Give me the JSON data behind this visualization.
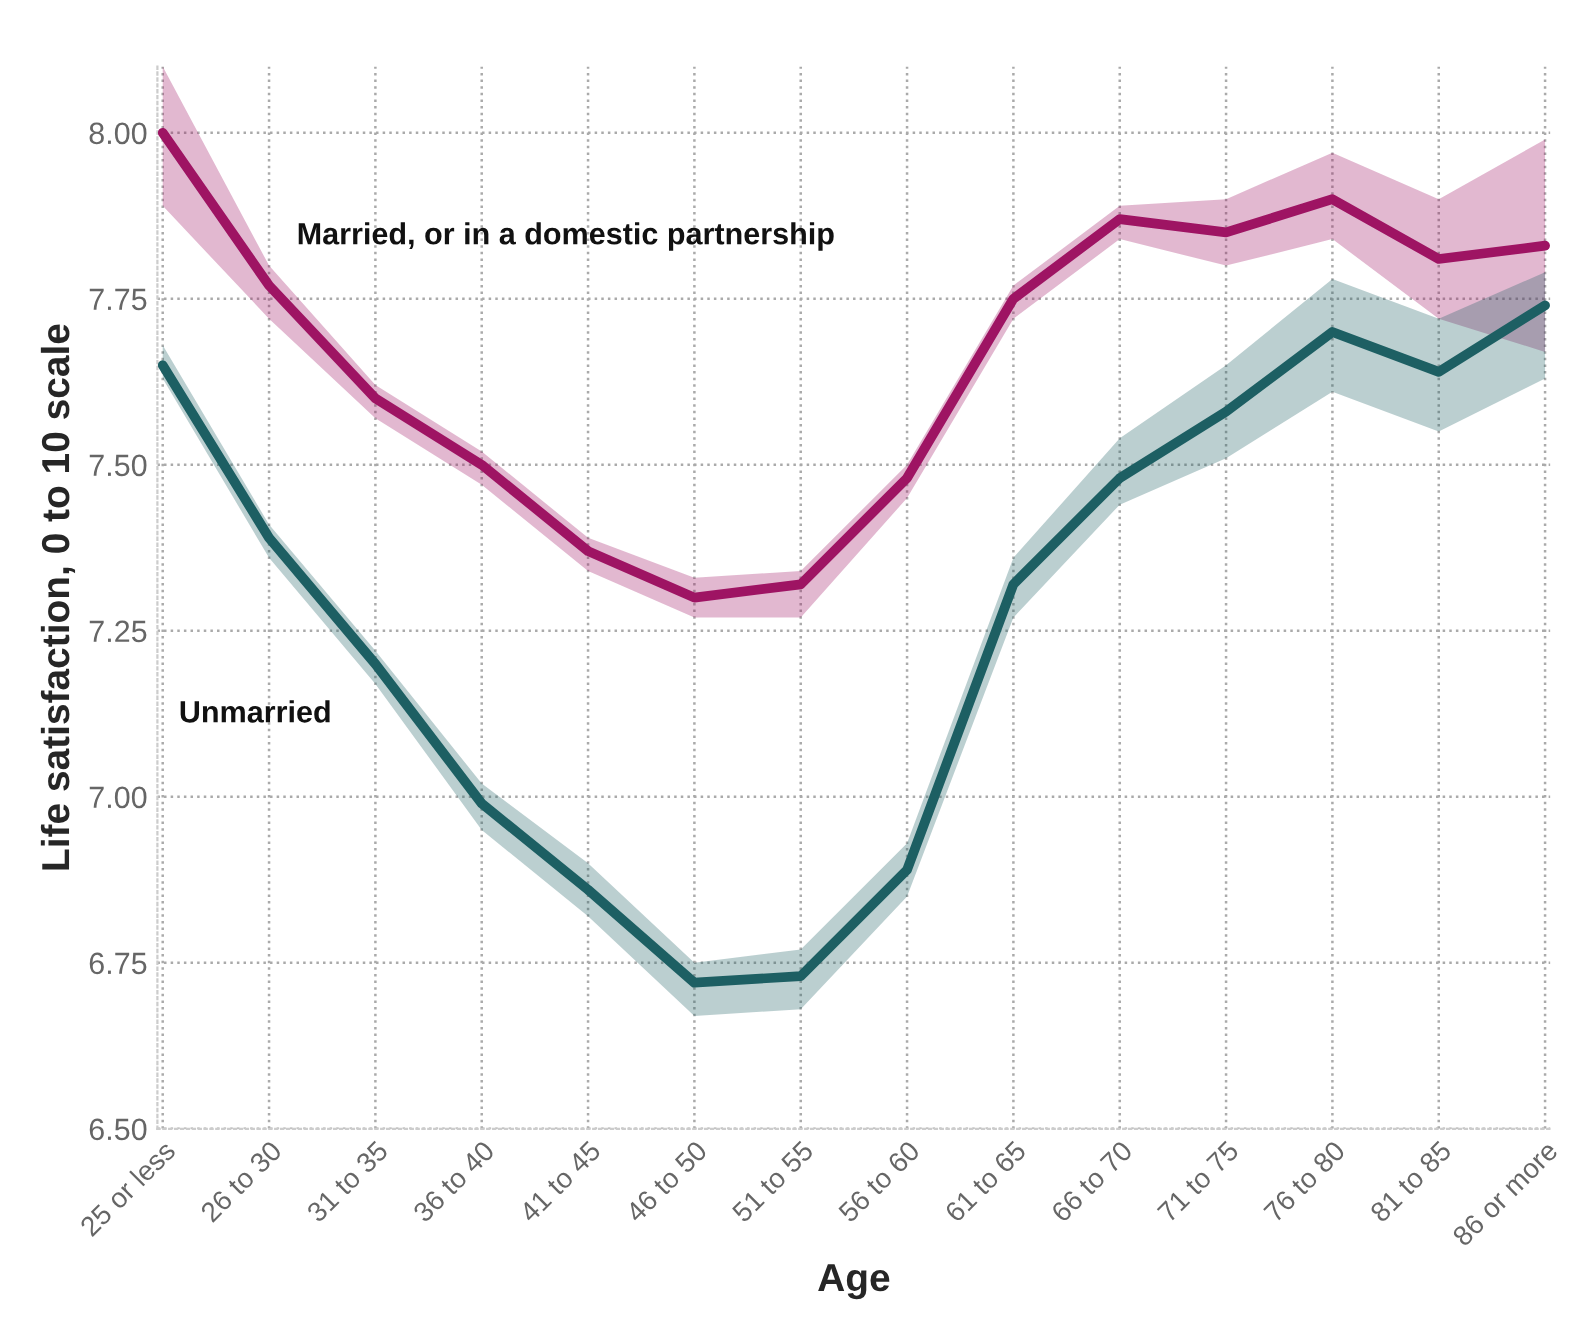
{
  "chart_data": {
    "type": "line",
    "xlabel": "Age",
    "ylabel": "Life satisfaction, 0 to 10 scale",
    "categories": [
      "25 or less",
      "26 to 30",
      "31 to 35",
      "36 to 40",
      "41 to 45",
      "46 to 50",
      "51 to 55",
      "56 to 60",
      "61 to 65",
      "66 to 70",
      "71 to 75",
      "76 to 80",
      "81 to 85",
      "86 or more"
    ],
    "series": [
      {
        "name": "Married, or in a domestic partnership",
        "color": "#9e1463",
        "values": [
          8.0,
          7.77,
          7.6,
          7.5,
          7.37,
          7.3,
          7.32,
          7.48,
          7.75,
          7.87,
          7.85,
          7.9,
          7.81,
          7.83
        ],
        "lower": [
          7.89,
          7.72,
          7.57,
          7.47,
          7.34,
          7.27,
          7.27,
          7.45,
          7.72,
          7.84,
          7.8,
          7.84,
          7.72,
          7.67
        ],
        "upper": [
          8.1,
          7.8,
          7.62,
          7.52,
          7.39,
          7.33,
          7.34,
          7.5,
          7.77,
          7.89,
          7.9,
          7.97,
          7.9,
          7.99
        ]
      },
      {
        "name": "Unmarried",
        "color": "#1d5f63",
        "values": [
          7.65,
          7.39,
          7.2,
          6.99,
          6.86,
          6.72,
          6.73,
          6.89,
          7.32,
          7.48,
          7.58,
          7.7,
          7.64,
          7.74
        ],
        "lower": [
          7.63,
          7.36,
          7.17,
          6.95,
          6.82,
          6.67,
          6.68,
          6.85,
          7.27,
          7.44,
          7.51,
          7.61,
          7.55,
          7.63
        ],
        "upper": [
          7.68,
          7.41,
          7.22,
          7.02,
          6.9,
          6.75,
          6.77,
          6.93,
          7.36,
          7.54,
          7.65,
          7.78,
          7.72,
          7.79
        ]
      }
    ],
    "ylim": [
      6.5,
      8.1
    ],
    "yticks": [
      {
        "value": 6.5,
        "label": "6.50"
      },
      {
        "value": 6.75,
        "label": "6.75"
      },
      {
        "value": 7.0,
        "label": "7.00"
      },
      {
        "value": 7.25,
        "label": "7.25"
      },
      {
        "value": 7.5,
        "label": "7.50"
      },
      {
        "value": 7.75,
        "label": "7.75"
      },
      {
        "value": 8.0,
        "label": "8.00"
      }
    ],
    "grid": true,
    "legend": false,
    "marker": "none",
    "line_style": "solid"
  }
}
